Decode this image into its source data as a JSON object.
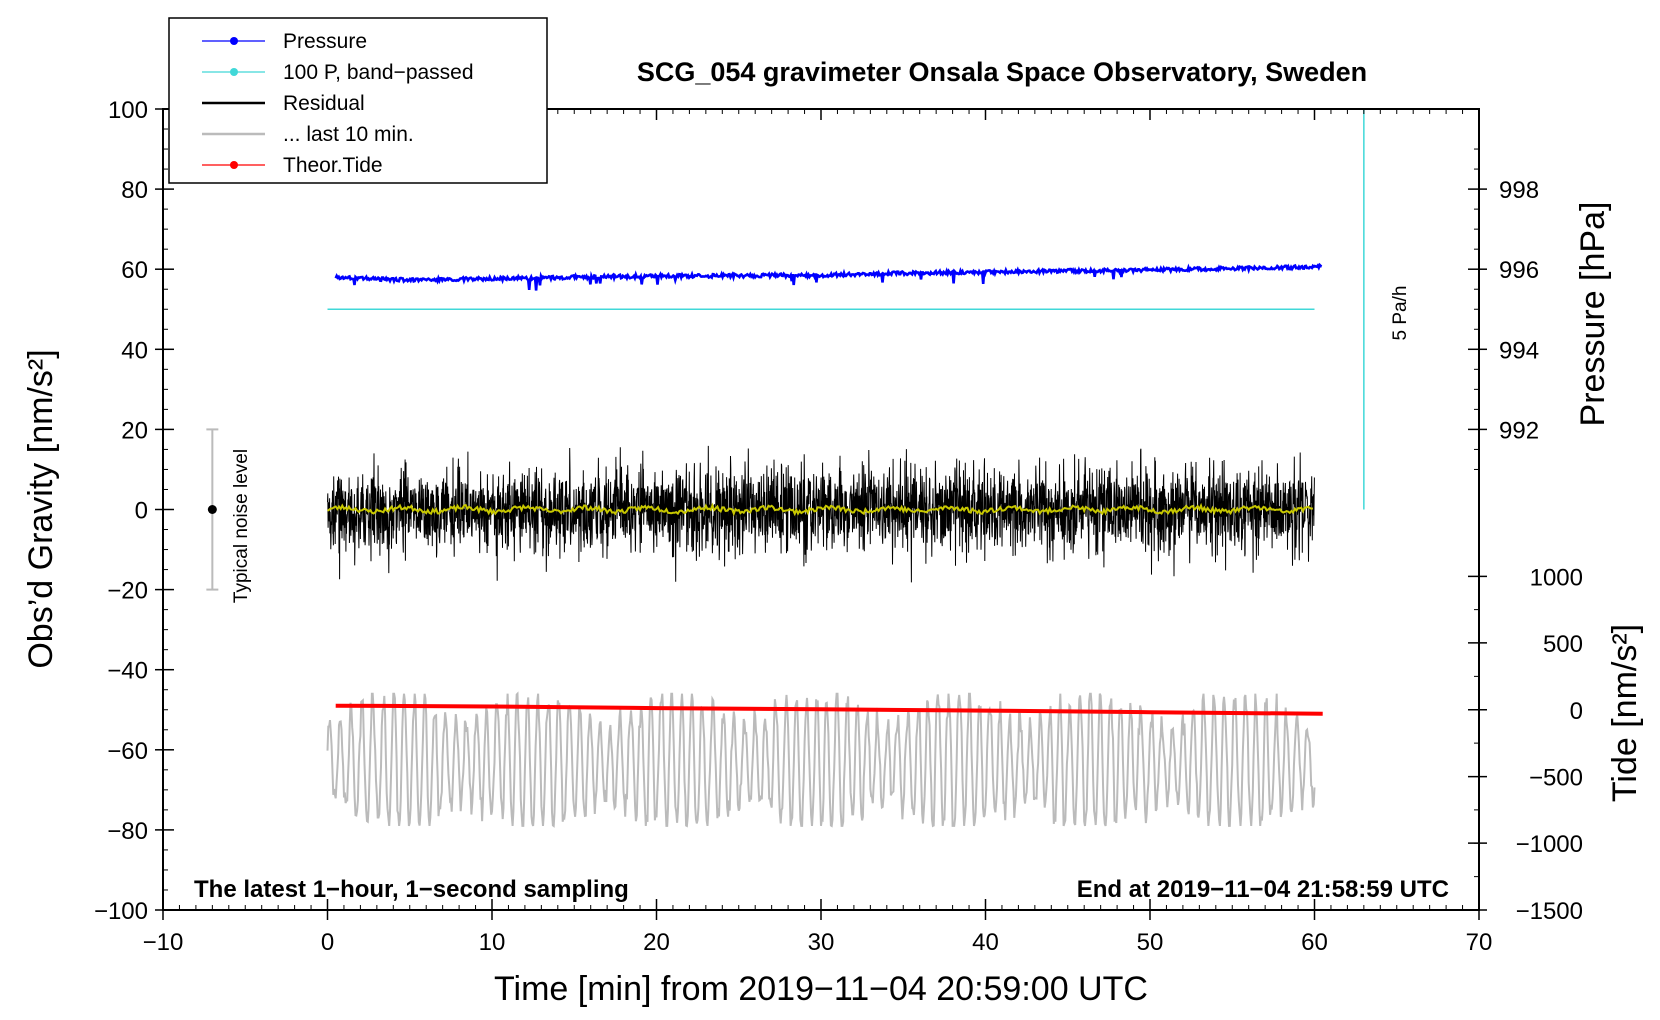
{
  "chart_data": {
    "type": "line",
    "title": "SCG_054 gravimeter Onsala Space Observatory, Sweden",
    "xlabel": "Time [min] from 2019−11−04 20:59:00 UTC",
    "ylabel_left": "Obs’d Gravity [nm/s²]",
    "ylabel_right_top": "Pressure [hPa]",
    "ylabel_right_bottom": "Tide [nm/s²]",
    "xlim": [
      -10,
      70
    ],
    "ylim": [
      -100,
      100
    ],
    "x_ticks": [
      -10,
      0,
      10,
      20,
      30,
      40,
      50,
      60,
      70
    ],
    "x_tick_labels": [
      "−10",
      "0",
      "10",
      "20",
      "30",
      "40",
      "50",
      "60",
      "70"
    ],
    "y_ticks": [
      100,
      80,
      60,
      40,
      20,
      0,
      -20,
      -40,
      -60,
      -80,
      -100
    ],
    "y_tick_labels": [
      "100",
      "80",
      "60",
      "40",
      "20",
      "0",
      "−20",
      "−40",
      "−60",
      "−80",
      "−100"
    ],
    "pressure_axis": {
      "ticks": [
        998,
        996,
        994,
        992
      ],
      "tick_labels": [
        "998",
        "996",
        "994",
        "992"
      ],
      "gravity_equivalent": [
        80,
        60,
        40,
        20
      ]
    },
    "tide_axis": {
      "ticks": [
        1000,
        500,
        0,
        -500,
        -1000,
        -1500
      ],
      "tick_labels": [
        "1000",
        "500",
        "0",
        "−500",
        "−1000",
        "−1500"
      ],
      "gravity_equivalent": [
        -16.7,
        -33.3,
        -50,
        -66.7,
        -83.3,
        -100
      ]
    },
    "series": [
      {
        "name": "Pressure",
        "color": "#0000ff",
        "style": "line+markers",
        "x": [
          0.5,
          5,
          10,
          15,
          20,
          25,
          30,
          35,
          40,
          45,
          50,
          55,
          60.5
        ],
        "values": [
          58.0,
          57.3,
          57.6,
          58.0,
          58.3,
          58.4,
          58.5,
          59.0,
          59.3,
          59.6,
          59.8,
          60.2,
          60.6
        ]
      },
      {
        "name": "100 P, band−passed",
        "color": "#40d8d8",
        "style": "line",
        "x": [
          0,
          60
        ],
        "values": [
          50,
          50
        ]
      },
      {
        "name": "Residual",
        "color": "#000000",
        "style": "line",
        "x_range": [
          0,
          60
        ],
        "mean": 0,
        "amplitude_range": [
          -22,
          21
        ]
      },
      {
        "name": "Residual smoothed",
        "color": "#c8c800",
        "style": "line",
        "x": [
          0,
          60
        ],
        "values": [
          0,
          0
        ]
      },
      {
        "name": "... last 10 min.",
        "color": "#bbbbbb",
        "style": "line",
        "x_range": [
          0,
          60
        ],
        "mean": -63,
        "amplitude_range": [
          -79,
          -46
        ]
      },
      {
        "name": "Theor.Tide",
        "color": "#ff0000",
        "style": "line+markers",
        "x": [
          0.5,
          10,
          20,
          30,
          40,
          50,
          60.5
        ],
        "values": [
          -49.0,
          -49.2,
          -49.6,
          -49.9,
          -50.2,
          -50.6,
          -51.0
        ]
      }
    ],
    "rate_marker": {
      "label": "5 Pa/h",
      "x": 63,
      "y_range": [
        0,
        100
      ],
      "color": "#40d8d8"
    },
    "noise_marker": {
      "label": "Typical noise level",
      "x": -7,
      "y_center": 0,
      "y_range": [
        -20,
        20
      ]
    },
    "legend": {
      "placement": "top-left",
      "entries": [
        {
          "label": "Pressure",
          "color": "#0000ff",
          "marker": true,
          "thick": false
        },
        {
          "label": "100 P, band−passed",
          "color": "#40d8d8",
          "marker": true,
          "thick": false
        },
        {
          "label": "Residual",
          "color": "#000000",
          "marker": false,
          "thick": true
        },
        {
          "label": "... last 10 min.",
          "color": "#bbbbbb",
          "marker": false,
          "thick": true
        },
        {
          "label": "Theor.Tide",
          "color": "#ff0000",
          "marker": true,
          "thick": false
        }
      ]
    },
    "annotations": {
      "bottom_left": "The latest 1−hour, 1−second sampling",
      "bottom_right": "End at 2019−11−04 21:58:59 UTC"
    }
  }
}
